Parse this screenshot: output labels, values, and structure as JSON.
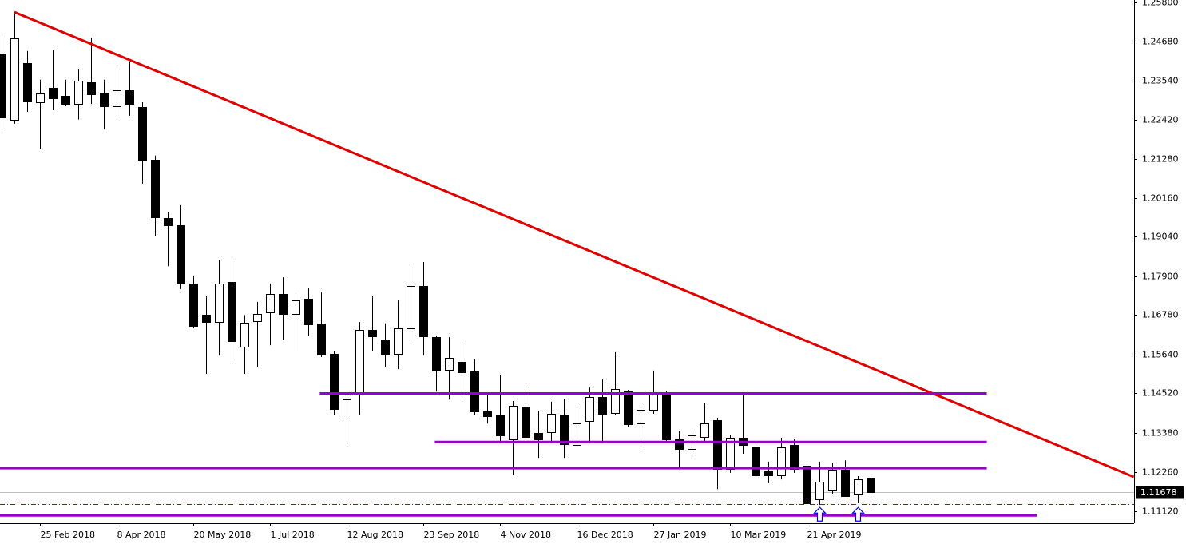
{
  "chart_data": {
    "type": "candlestick",
    "up_color": "#ffffff",
    "down_color": "#000000",
    "categories": [
      null,
      null,
      null,
      "25 Feb 2018",
      null,
      null,
      null,
      null,
      null,
      "8 Apr 2018",
      null,
      null,
      null,
      null,
      null,
      "20 May 2018",
      null,
      null,
      null,
      null,
      null,
      "1 Jul 2018",
      null,
      null,
      null,
      null,
      null,
      "12 Aug 2018",
      null,
      null,
      null,
      null,
      null,
      "23 Sep 2018",
      null,
      null,
      null,
      null,
      null,
      "4 Nov 2018",
      null,
      null,
      null,
      null,
      null,
      "16 Dec 2018",
      null,
      null,
      null,
      null,
      null,
      "27 Jan 2019",
      null,
      null,
      null,
      null,
      null,
      "10 Mar 2019",
      null,
      null,
      null,
      null,
      null,
      "21 Apr 2019",
      null,
      null,
      null,
      null,
      null
    ],
    "open": [
      1.2433,
      1.2242,
      1.2405,
      1.2292,
      1.2333,
      1.231,
      1.2287,
      1.235,
      1.232,
      1.228,
      1.2326,
      1.2278,
      1.2126,
      1.1958,
      1.1937,
      1.1769,
      1.1679,
      1.1658,
      1.1773,
      1.1586,
      1.166,
      1.1686,
      1.1739,
      1.1681,
      1.1725,
      1.1654,
      1.1566,
      1.1379,
      1.1454,
      1.1634,
      1.1607,
      1.1566,
      1.164,
      1.1762,
      1.1614,
      1.1519,
      1.1543,
      1.1515,
      1.14,
      1.1388,
      1.1319,
      1.1414,
      1.1338,
      1.134,
      1.1391,
      1.1303,
      1.1372,
      1.1442,
      1.1395,
      1.1458,
      1.1365,
      1.1405,
      1.1451,
      1.1319,
      1.1292,
      1.1326,
      1.1375,
      1.1234,
      1.1324,
      1.1296,
      1.1227,
      1.1216,
      1.1303,
      1.1243,
      1.1146,
      1.1172,
      1.1232,
      1.116,
      1.1209
    ],
    "high": [
      1.2477,
      1.2552,
      1.244,
      1.2357,
      1.2444,
      1.2357,
      1.2386,
      1.2477,
      1.2357,
      1.2395,
      1.2409,
      1.2292,
      1.2138,
      1.1976,
      1.1995,
      1.1792,
      1.1734,
      1.1838,
      1.1849,
      1.1678,
      1.1716,
      1.1769,
      1.1787,
      1.1739,
      1.1757,
      1.1743,
      1.1573,
      1.1458,
      1.1658,
      1.1734,
      1.1654,
      1.172,
      1.182,
      1.1831,
      1.1619,
      1.1614,
      1.1607,
      1.155,
      1.1446,
      1.1504,
      1.143,
      1.1469,
      1.14,
      1.1428,
      1.1435,
      1.1423,
      1.1469,
      1.1492,
      1.1571,
      1.1462,
      1.1423,
      1.1518,
      1.1458,
      1.1343,
      1.1343,
      1.1423,
      1.1382,
      1.1331,
      1.1451,
      1.1301,
      1.1255,
      1.1324,
      1.1319,
      1.1255,
      1.1255,
      1.125,
      1.1259,
      1.1213,
      1.1213
    ],
    "low": [
      1.2206,
      1.223,
      1.2264,
      1.2156,
      1.2269,
      1.228,
      1.2242,
      1.2287,
      1.2214,
      1.2253,
      1.2253,
      1.2057,
      1.1907,
      1.1819,
      1.1753,
      1.1642,
      1.1508,
      1.1561,
      1.1538,
      1.1508,
      1.1527,
      1.1591,
      1.1607,
      1.1573,
      1.1619,
      1.1557,
      1.1389,
      1.1301,
      1.1389,
      1.1573,
      1.1527,
      1.1522,
      1.1607,
      1.1561,
      1.1457,
      1.1434,
      1.143,
      1.139,
      1.1365,
      1.1308,
      1.1216,
      1.1313,
      1.1266,
      1.1308,
      1.1266,
      1.1306,
      1.1308,
      1.1308,
      1.1389,
      1.1354,
      1.1292,
      1.1393,
      1.1315,
      1.1239,
      1.1273,
      1.1315,
      1.1176,
      1.1223,
      1.1278,
      1.1211,
      1.1193,
      1.1204,
      1.1223,
      1.113,
      1.113,
      1.1163,
      1.1154,
      1.1135,
      1.1124
    ],
    "close": [
      1.2248,
      1.2477,
      1.2294,
      1.2317,
      1.2303,
      1.2287,
      1.2354,
      1.2315,
      1.228,
      1.2326,
      1.2285,
      1.2126,
      1.196,
      1.1937,
      1.1769,
      1.1647,
      1.1658,
      1.1769,
      1.1603,
      1.1656,
      1.1681,
      1.1739,
      1.1681,
      1.1721,
      1.1651,
      1.1564,
      1.1407,
      1.1435,
      1.1634,
      1.1616,
      1.1566,
      1.164,
      1.1762,
      1.1616,
      1.1517,
      1.1554,
      1.1513,
      1.14,
      1.1386,
      1.1331,
      1.1416,
      1.1326,
      1.1319,
      1.1393,
      1.1306,
      1.1365,
      1.1442,
      1.1393,
      1.1465,
      1.1363,
      1.1405,
      1.1456,
      1.1319,
      1.1292,
      1.1331,
      1.1365,
      1.1234,
      1.1324,
      1.1303,
      1.1216,
      1.1216,
      1.1296,
      1.1234,
      1.1135,
      1.1197,
      1.1232,
      1.1156,
      1.1204,
      1.1168
    ],
    "xlim": [
      -0.125,
      88.625
    ],
    "ylim": [
      1.10774,
      1.25869
    ],
    "yticks": [
      {
        "value": 1.258,
        "label": "1.25800"
      },
      {
        "value": 1.2468,
        "label": "1.24680"
      },
      {
        "value": 1.2354,
        "label": "1.23540"
      },
      {
        "value": 1.2242,
        "label": "1.22420"
      },
      {
        "value": 1.2128,
        "label": "1.21280"
      },
      {
        "value": 1.2016,
        "label": "1.20160"
      },
      {
        "value": 1.1904,
        "label": "1.19040"
      },
      {
        "value": 1.179,
        "label": "1.17900"
      },
      {
        "value": 1.1678,
        "label": "1.16780"
      },
      {
        "value": 1.1564,
        "label": "1.15640"
      },
      {
        "value": 1.1452,
        "label": "1.14520"
      },
      {
        "value": 1.1338,
        "label": "1.13380"
      },
      {
        "value": 1.1226,
        "label": "1.12260"
      },
      {
        "value": 1.1112,
        "label": "1.11120"
      }
    ],
    "current_price": 1.11678,
    "current_price_color": "#c0c0c0",
    "ask_line": 1.1133,
    "ask_line_color": "#c00000",
    "lines": [
      {
        "color": "#e00000",
        "x": [
          1,
          88.6
        ],
        "y": [
          1.2552,
          1.1211
        ]
      },
      {
        "color": "#9900cc",
        "x": [
          24.9,
          77.1
        ],
        "y": [
          1.1452,
          1.1452
        ]
      },
      {
        "color": "#9900cc",
        "x": [
          33.9,
          77.1
        ],
        "y": [
          1.1312,
          1.1312
        ]
      },
      {
        "color": "#9900cc",
        "x": [
          -0.125,
          77.1
        ],
        "y": [
          1.1236,
          1.1236
        ]
      },
      {
        "color": "#9900cc",
        "x": [
          -0.125,
          81
        ],
        "y": [
          1.11,
          1.11
        ]
      }
    ],
    "arrows": [
      {
        "x": 64,
        "y": 1.1123,
        "color": "#0000ff"
      },
      {
        "x": 67,
        "y": 1.1123,
        "color": "#0000ff"
      }
    ]
  }
}
